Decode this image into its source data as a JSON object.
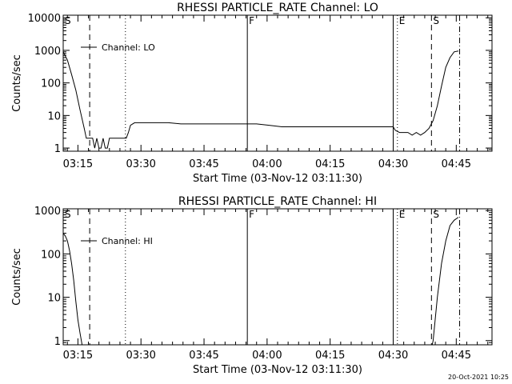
{
  "chart_data": [
    {
      "type": "line",
      "title": "RHESSI PARTICLE_RATE Channel: LO",
      "xlabel": "Start Time (03-Nov-12 03:11:30)",
      "ylabel": "Counts/sec",
      "yscale": "log",
      "ylim": [
        0.8,
        12000
      ],
      "xlim_min": [
        0,
        102
      ],
      "xtick_minutes": [
        3.5,
        18.5,
        33.5,
        48.5,
        63.5,
        78.5,
        93.5
      ],
      "xtick_labels": [
        "03:15",
        "03:30",
        "03:45",
        "04:00",
        "04:15",
        "04:30",
        "04:45"
      ],
      "ytick_values": [
        1,
        10,
        100,
        1000,
        10000
      ],
      "ytick_labels": [
        "1",
        "10",
        "100",
        "1000",
        "10000"
      ],
      "legend": "Channel: LO",
      "markers": [
        {
          "minute": 0.0,
          "label": "S",
          "style": "none"
        },
        {
          "minute": 6.3,
          "label": "",
          "style": "dashed"
        },
        {
          "minute": 14.8,
          "label": "",
          "style": "dotted"
        },
        {
          "minute": 43.8,
          "label": "F",
          "style": "solid"
        },
        {
          "minute": 78.5,
          "label": "",
          "style": "solid"
        },
        {
          "minute": 79.5,
          "label": "E",
          "style": "dotted"
        },
        {
          "minute": 87.6,
          "label": "S",
          "style": "dashed"
        },
        {
          "minute": 94.3,
          "label": "",
          "style": "dashdot"
        }
      ],
      "series": [
        {
          "name": "Channel: LO",
          "x": [
            0,
            1,
            2,
            3,
            4,
            5,
            5.5,
            6,
            7,
            7.5,
            8,
            8.5,
            9,
            9.5,
            10,
            10.5,
            11,
            12,
            13,
            14,
            15,
            15.5,
            16,
            17,
            18,
            20,
            22,
            25,
            28,
            31,
            34,
            37,
            40,
            43,
            46,
            49,
            52,
            55,
            58,
            61,
            64,
            67,
            70,
            73,
            76,
            78.5,
            79,
            80,
            81,
            82,
            83,
            84,
            85,
            86,
            87,
            88,
            89,
            90,
            91,
            92,
            93,
            94
          ],
          "y": [
            900,
            500,
            180,
            60,
            15,
            4,
            2,
            2,
            2,
            1,
            2,
            1,
            1,
            2,
            1,
            1,
            2,
            2,
            2,
            2,
            2,
            3,
            5,
            6,
            6,
            6,
            6,
            6,
            5.5,
            5.5,
            5.5,
            5.5,
            5.5,
            5.5,
            5.5,
            5,
            4.5,
            4.5,
            4.5,
            4.5,
            4.5,
            4.5,
            4.5,
            4.5,
            4.5,
            4.5,
            3.5,
            3,
            3,
            3,
            2.5,
            3,
            2.5,
            3,
            4,
            7,
            20,
            80,
            300,
            600,
            900,
            950
          ]
        }
      ]
    },
    {
      "type": "line",
      "title": "RHESSI PARTICLE_RATE Channel: HI",
      "xlabel": "Start Time (03-Nov-12 03:11:30)",
      "ylabel": "Counts/sec",
      "yscale": "log",
      "ylim": [
        0.8,
        1100
      ],
      "xlim_min": [
        0,
        102
      ],
      "xtick_minutes": [
        3.5,
        18.5,
        33.5,
        48.5,
        63.5,
        78.5,
        93.5
      ],
      "xtick_labels": [
        "03:15",
        "03:30",
        "03:45",
        "04:00",
        "04:15",
        "04:30",
        "04:45"
      ],
      "ytick_values": [
        1,
        10,
        100,
        1000
      ],
      "ytick_labels": [
        "1",
        "10",
        "100",
        "1000"
      ],
      "legend": "Channel: HI",
      "markers": [
        {
          "minute": 0.0,
          "label": "S",
          "style": "none"
        },
        {
          "minute": 6.3,
          "label": "",
          "style": "dashed"
        },
        {
          "minute": 14.8,
          "label": "",
          "style": "dotted"
        },
        {
          "minute": 43.8,
          "label": "F",
          "style": "solid"
        },
        {
          "minute": 78.5,
          "label": "",
          "style": "solid"
        },
        {
          "minute": 79.5,
          "label": "E",
          "style": "dotted"
        },
        {
          "minute": 87.6,
          "label": "S",
          "style": "dashed"
        },
        {
          "minute": 94.3,
          "label": "",
          "style": "dashdot"
        }
      ],
      "series": [
        {
          "name": "Channel: HI",
          "x": [
            0,
            0.5,
            1,
            1.5,
            2,
            2.5,
            3,
            3.5,
            4,
            4.5,
            5,
            87.5,
            88,
            89,
            90,
            91,
            92,
            93,
            94
          ],
          "y": [
            300,
            260,
            200,
            120,
            60,
            25,
            8,
            3,
            1.5,
            0.8,
            0.6,
            0.6,
            1,
            10,
            60,
            200,
            450,
            600,
            700
          ]
        }
      ]
    }
  ],
  "footer": {
    "timestamp": "20-Oct-2021 10:25"
  }
}
